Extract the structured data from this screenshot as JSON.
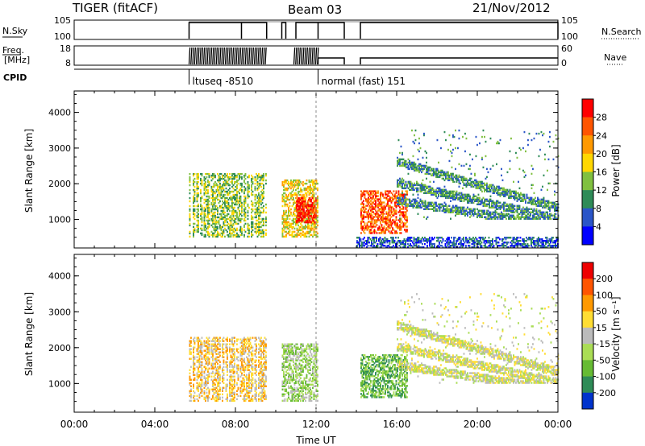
{
  "header": {
    "radar": "TIGER (fitACF)",
    "beam": "Beam 03",
    "date": "21/Nov/2012"
  },
  "top_panels": {
    "nsky": {
      "label": "N.Sky",
      "ticks": [
        "10^5",
        "10^0"
      ]
    },
    "nsearch": {
      "label": "N.Search",
      "ticks": [
        "10^5",
        "10^0"
      ]
    },
    "freq": {
      "label_line1": "Freq.",
      "label_line2": "[MHz]",
      "ticks": [
        "18",
        "8"
      ]
    },
    "nave": {
      "label": "Nave",
      "ticks": [
        "60",
        "0"
      ]
    },
    "cpid": {
      "label": "CPID",
      "segments": [
        {
          "name": "ltuseq -8510",
          "start_hour": 5.7
        },
        {
          "name": "normal (fast) 151",
          "start_hour": 12.1
        }
      ]
    }
  },
  "chart_data": [
    {
      "type": "heatmap",
      "panel": "power",
      "ylabel": "Slant Range [km]",
      "yticks": [
        1000,
        2000,
        3000,
        4000
      ],
      "ylim": [
        200,
        4600
      ],
      "xlim": [
        0,
        24
      ],
      "colorbar": {
        "label": "Power [dB]",
        "ticks": [
          "28",
          "24",
          "20",
          "16",
          "12",
          "8",
          "4"
        ],
        "colors": [
          "#0000ff",
          "#2a55c8",
          "#2e8b57",
          "#80c040",
          "#ffd700",
          "#ff9900",
          "#ff5500",
          "#ff0000"
        ]
      },
      "regions": [
        {
          "hours": [
            5.7,
            9.5
          ],
          "range_km": [
            500,
            2300
          ],
          "level": 3,
          "vertical_banding": true
        },
        {
          "hours": [
            10.3,
            12.1
          ],
          "range_km": [
            500,
            2100
          ],
          "level": 4
        },
        {
          "hours": [
            11.0,
            12.0
          ],
          "range_km": [
            900,
            1600
          ],
          "level": 7
        },
        {
          "hours": [
            14.2,
            16.5
          ],
          "range_km": [
            600,
            1800
          ],
          "level": 6
        },
        {
          "hours": [
            16.0,
            24.0
          ],
          "range_km": [
            1000,
            3500
          ],
          "level": 2,
          "descending_bands": true
        },
        {
          "hours": [
            14.0,
            24.0
          ],
          "range_km": [
            200,
            500
          ],
          "level": 1
        }
      ]
    },
    {
      "type": "heatmap",
      "panel": "velocity",
      "ylabel": "Slant Range [km]",
      "yticks": [
        1000,
        2000,
        3000,
        4000
      ],
      "ylim": [
        200,
        4600
      ],
      "xlim": [
        0,
        24
      ],
      "xlabel": "Time UT",
      "xticks": [
        "00:00",
        "04:00",
        "08:00",
        "12:00",
        "16:00",
        "20:00",
        "00:00"
      ],
      "colorbar": {
        "label": "Velocity [m s⁻¹]",
        "ticks": [
          "200",
          "100",
          "50",
          "15",
          "-15",
          "-50",
          "-100",
          "-200"
        ],
        "colors": [
          "#0033cc",
          "#2e8b57",
          "#66bb33",
          "#aadd55",
          "#bbbbbb",
          "#ffdd33",
          "#ff9900",
          "#ff5500",
          "#ee0000"
        ]
      },
      "regions": [
        {
          "hours": [
            5.7,
            9.5
          ],
          "range_km": [
            500,
            2300
          ],
          "level": 5,
          "vertical_banding": true
        },
        {
          "hours": [
            10.3,
            12.1
          ],
          "range_km": [
            500,
            2100
          ],
          "level": 3
        },
        {
          "hours": [
            14.2,
            16.5
          ],
          "range_km": [
            600,
            1800
          ],
          "level": 2
        },
        {
          "hours": [
            16.0,
            24.0
          ],
          "range_km": [
            1000,
            3500
          ],
          "level": 4,
          "descending_bands": true
        }
      ]
    }
  ]
}
